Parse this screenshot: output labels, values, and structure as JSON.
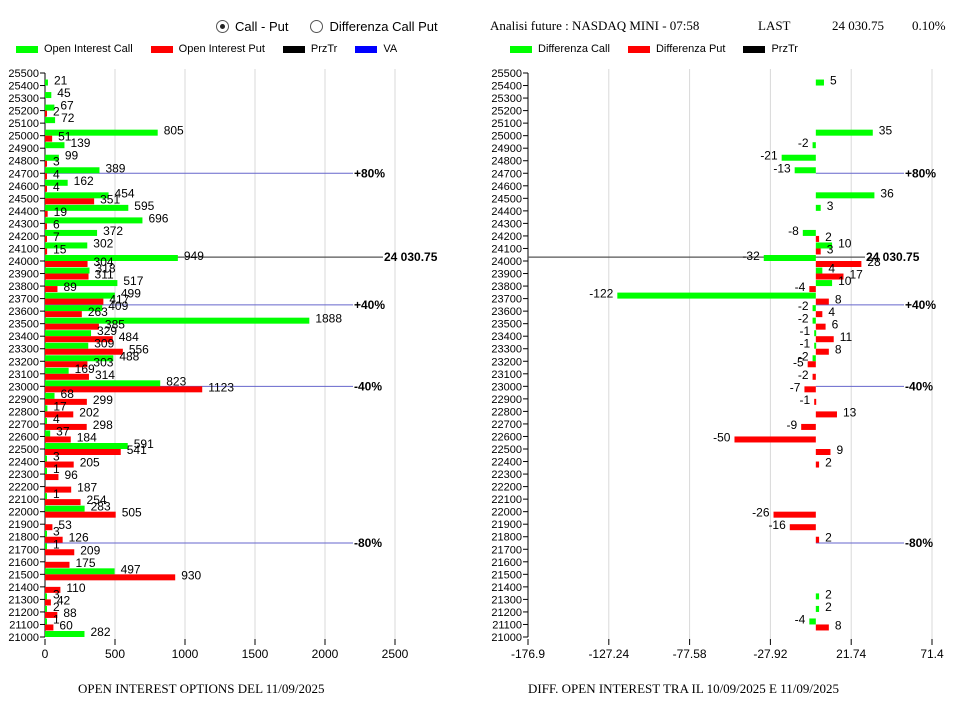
{
  "controls": {
    "radio_options": [
      {
        "label": "Call - Put",
        "selected": true
      },
      {
        "label": "Differenza Call Put",
        "selected": false
      }
    ]
  },
  "header": {
    "title": "Analisi future : NASDAQ MINI - 07:58",
    "last_label": "LAST",
    "last_value": "24 030.75",
    "change": "0.10%"
  },
  "colors": {
    "call": "#00ff00",
    "put": "#ff0000",
    "przTr": "#000000",
    "va": "#0000ff",
    "grid": "#d9d9d9"
  },
  "chart_data": [
    {
      "type": "bar",
      "orientation": "horizontal",
      "title": "OPEN INTEREST OPTIONS DEL 11/09/2025",
      "legend": [
        {
          "label": "Open Interest Call",
          "color": "#00ff00"
        },
        {
          "label": "Open Interest Put",
          "color": "#ff0000"
        },
        {
          "label": "PrzTr",
          "color": "#000000"
        },
        {
          "label": "VA",
          "color": "#0000ff"
        }
      ],
      "legend_position": "top-left",
      "xlim": [
        0,
        2500
      ],
      "xticks": [
        "0",
        "500",
        "1000",
        "1500",
        "2000",
        "2500"
      ],
      "xtick_values": [
        0,
        500,
        1000,
        1500,
        2000,
        2500
      ],
      "grid": true,
      "categories": [
        25500,
        25400,
        25300,
        25200,
        25100,
        25000,
        24900,
        24800,
        24700,
        24600,
        24500,
        24400,
        24300,
        24200,
        24100,
        24000,
        23900,
        23800,
        23700,
        23600,
        23500,
        23400,
        23300,
        23200,
        23100,
        23000,
        22900,
        22800,
        22700,
        22600,
        22500,
        22400,
        22300,
        22200,
        22100,
        22000,
        21900,
        21800,
        21700,
        21600,
        21500,
        21400,
        21300,
        21200,
        21100,
        21000
      ],
      "series": [
        {
          "name": "Open Interest Call",
          "values": [
            null,
            21,
            45,
            67,
            72,
            805,
            139,
            99,
            389,
            162,
            454,
            595,
            696,
            372,
            302,
            949,
            318,
            517,
            499,
            409,
            1888,
            329,
            309,
            488,
            169,
            823,
            68,
            17,
            4,
            37,
            591,
            3,
            1,
            null,
            1,
            283,
            null,
            3,
            1,
            null,
            497,
            null,
            3,
            2,
            1,
            282
          ]
        },
        {
          "name": "Open Interest Put",
          "values": [
            null,
            null,
            null,
            2,
            null,
            51,
            null,
            3,
            4,
            4,
            351,
            19,
            6,
            7,
            15,
            304,
            311,
            89,
            417,
            263,
            385,
            484,
            556,
            303,
            314,
            1123,
            299,
            202,
            298,
            184,
            541,
            205,
            96,
            187,
            254,
            505,
            53,
            126,
            209,
            175,
            930,
            110,
            42,
            88,
            60,
            null
          ]
        }
      ],
      "reference_lines": [
        {
          "strike": 24700,
          "label": "+80%",
          "type": "va"
        },
        {
          "strike": 24030.75,
          "label": "24 030.75",
          "type": "przTr"
        },
        {
          "strike": 23650,
          "label": "+40%",
          "type": "va"
        },
        {
          "strike": 23000,
          "label": "-40%",
          "type": "va"
        },
        {
          "strike": 21750,
          "label": "-80%",
          "type": "va"
        }
      ]
    },
    {
      "type": "bar",
      "orientation": "horizontal",
      "title": "DIFF. OPEN INTEREST TRA IL 10/09/2025 E 11/09/2025",
      "legend": [
        {
          "label": "Differenza Call",
          "color": "#00ff00"
        },
        {
          "label": "Differenza Put",
          "color": "#ff0000"
        },
        {
          "label": "PrzTr",
          "color": "#000000"
        }
      ],
      "legend_position": "top-left",
      "xlim": [
        -176.9,
        71.4
      ],
      "xticks": [
        "-176.9",
        "-127.24",
        "-77.58",
        "-27.92",
        "21.74",
        "71.4"
      ],
      "xtick_values": [
        -176.9,
        -127.24,
        -77.58,
        -27.92,
        21.74,
        71.4
      ],
      "grid": true,
      "categories": [
        25500,
        25400,
        25300,
        25200,
        25100,
        25000,
        24900,
        24800,
        24700,
        24600,
        24500,
        24400,
        24300,
        24200,
        24100,
        24000,
        23900,
        23800,
        23700,
        23600,
        23500,
        23400,
        23300,
        23200,
        23100,
        23000,
        22900,
        22800,
        22700,
        22600,
        22500,
        22400,
        22300,
        22200,
        22100,
        22000,
        21900,
        21800,
        21700,
        21600,
        21500,
        21400,
        21300,
        21200,
        21100,
        21000
      ],
      "series": [
        {
          "name": "Differenza Call",
          "values": [
            null,
            5,
            null,
            null,
            null,
            35,
            -2,
            -21,
            -13,
            null,
            36,
            3,
            null,
            -8,
            10,
            -32,
            4,
            10,
            -122,
            -2,
            -2,
            -1,
            -1,
            -2,
            null,
            null,
            null,
            null,
            null,
            null,
            null,
            null,
            null,
            null,
            null,
            null,
            null,
            null,
            null,
            null,
            null,
            null,
            2,
            2,
            -4,
            null
          ]
        },
        {
          "name": "Differenza Put",
          "values": [
            null,
            null,
            null,
            null,
            null,
            null,
            null,
            null,
            null,
            null,
            null,
            null,
            null,
            2,
            3,
            28,
            17,
            -4,
            8,
            4,
            6,
            11,
            8,
            -5,
            -2,
            -7,
            -1,
            13,
            -9,
            -50,
            9,
            2,
            null,
            null,
            null,
            -26,
            -16,
            2,
            null,
            null,
            null,
            null,
            null,
            null,
            8,
            null
          ]
        }
      ],
      "reference_lines": [
        {
          "strike": 24700,
          "label": "+80%",
          "type": "va"
        },
        {
          "strike": 24030.75,
          "label": "24 030.75",
          "type": "przTr"
        },
        {
          "strike": 23650,
          "label": "+40%",
          "type": "va"
        },
        {
          "strike": 23000,
          "label": "-40%",
          "type": "va"
        },
        {
          "strike": 21750,
          "label": "-80%",
          "type": "va"
        }
      ]
    }
  ]
}
